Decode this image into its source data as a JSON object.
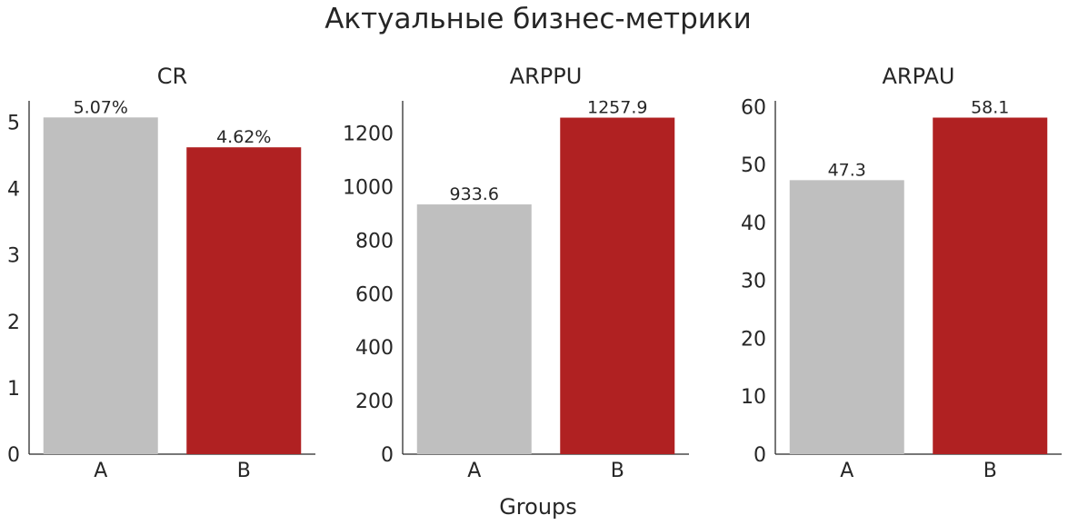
{
  "title": "Актуальные бизнес-метрики",
  "xlabel": "Groups",
  "colors": {
    "A": "#bfbfbf",
    "B": "#b02122"
  },
  "chart_data": [
    {
      "type": "bar",
      "title": "CR",
      "categories": [
        "A",
        "B"
      ],
      "values": [
        5.07,
        4.62
      ],
      "labels": [
        "5.07%",
        "4.62%"
      ],
      "ylim": [
        0,
        5.32
      ],
      "yticks": [
        0,
        1,
        2,
        3,
        4,
        5
      ],
      "grid": false
    },
    {
      "type": "bar",
      "title": "ARPPU",
      "categories": [
        "A",
        "B"
      ],
      "values": [
        933.6,
        1257.9
      ],
      "labels": [
        "933.6",
        "1257.9"
      ],
      "ylim": [
        0,
        1320.8
      ],
      "yticks": [
        0,
        200,
        400,
        600,
        800,
        1000,
        1200
      ],
      "grid": false
    },
    {
      "type": "bar",
      "title": "ARPAU",
      "categories": [
        "A",
        "B"
      ],
      "values": [
        47.3,
        58.1
      ],
      "labels": [
        "47.3",
        "58.1"
      ],
      "ylim": [
        0,
        61.0
      ],
      "yticks": [
        0,
        10,
        20,
        30,
        40,
        50,
        60
      ],
      "grid": false
    }
  ]
}
